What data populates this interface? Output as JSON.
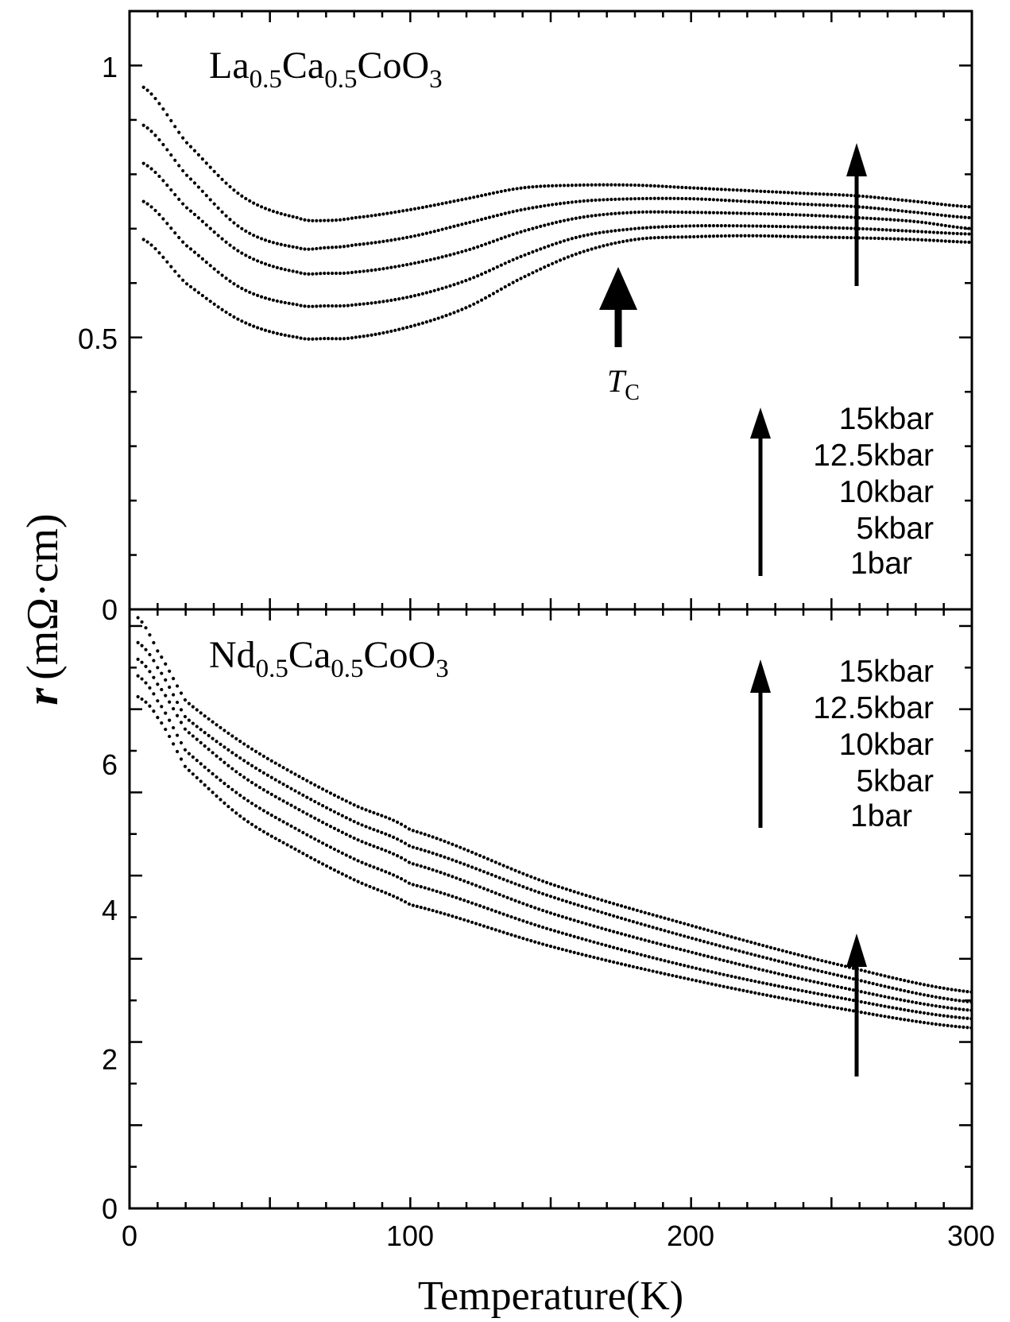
{
  "chart_data": [
    {
      "type": "scatter",
      "panel": "top",
      "compound": {
        "base": [
          "La",
          "Ca",
          "CoO"
        ],
        "subs": [
          "0.5",
          "0.5",
          "3"
        ]
      },
      "xlim": [
        0,
        300
      ],
      "ylim": [
        0,
        1.1
      ],
      "y_ticks": [
        "0",
        "0.5",
        "1"
      ],
      "tc_label": {
        "main": "T",
        "sub": "C"
      },
      "legend": {
        "title": "",
        "entries": [
          "15kbar",
          "12.5kbar",
          "10kbar",
          "5kbar",
          "1bar"
        ]
      },
      "series": [
        {
          "name": "1bar",
          "x": [
            5,
            20,
            40,
            60,
            70,
            80,
            100,
            120,
            140,
            160,
            180,
            200,
            220,
            240,
            260,
            280,
            300
          ],
          "y": [
            0.96,
            0.86,
            0.76,
            0.72,
            0.715,
            0.72,
            0.735,
            0.755,
            0.775,
            0.78,
            0.78,
            0.775,
            0.77,
            0.765,
            0.76,
            0.75,
            0.74
          ]
        },
        {
          "name": "5kbar",
          "x": [
            5,
            20,
            40,
            60,
            70,
            80,
            100,
            120,
            140,
            160,
            180,
            200,
            220,
            240,
            260,
            280,
            300
          ],
          "y": [
            0.89,
            0.8,
            0.7,
            0.665,
            0.665,
            0.67,
            0.685,
            0.71,
            0.735,
            0.75,
            0.755,
            0.755,
            0.75,
            0.745,
            0.74,
            0.73,
            0.72
          ]
        },
        {
          "name": "10kbar",
          "x": [
            5,
            20,
            40,
            60,
            70,
            80,
            100,
            120,
            140,
            160,
            180,
            200,
            220,
            240,
            260,
            280,
            300
          ],
          "y": [
            0.82,
            0.74,
            0.655,
            0.62,
            0.618,
            0.62,
            0.635,
            0.66,
            0.695,
            0.72,
            0.73,
            0.73,
            0.728,
            0.725,
            0.72,
            0.713,
            0.7
          ]
        },
        {
          "name": "12.5kbar",
          "x": [
            5,
            20,
            40,
            60,
            70,
            80,
            100,
            120,
            140,
            160,
            180,
            200,
            220,
            240,
            260,
            280,
            300
          ],
          "y": [
            0.75,
            0.67,
            0.59,
            0.56,
            0.558,
            0.56,
            0.575,
            0.605,
            0.65,
            0.685,
            0.7,
            0.705,
            0.705,
            0.703,
            0.7,
            0.695,
            0.69
          ]
        },
        {
          "name": "15kbar",
          "x": [
            5,
            20,
            40,
            60,
            70,
            80,
            100,
            120,
            140,
            160,
            180,
            200,
            220,
            240,
            260,
            280,
            300
          ],
          "y": [
            0.68,
            0.6,
            0.53,
            0.5,
            0.498,
            0.5,
            0.52,
            0.555,
            0.61,
            0.655,
            0.68,
            0.685,
            0.687,
            0.685,
            0.683,
            0.68,
            0.675
          ]
        }
      ]
    },
    {
      "type": "scatter",
      "panel": "bottom",
      "compound": {
        "base": [
          "Nd",
          "Ca",
          "CoO"
        ],
        "subs": [
          "0.5",
          "0.5",
          "3"
        ]
      },
      "xlim": [
        0,
        300
      ],
      "ylim": [
        0,
        7.2
      ],
      "x_ticks": [
        "0",
        "100",
        "200",
        "300"
      ],
      "y_ticks": [
        "0",
        "2",
        "4",
        "6"
      ],
      "xlabel": "Temperature(K)",
      "ylabel": {
        "main": "r",
        "unit": "(mΩ·cm)"
      },
      "legend": {
        "title": "",
        "entries": [
          "15kbar",
          "12.5kbar",
          "10kbar",
          "5kbar",
          "1bar"
        ]
      },
      "series": [
        {
          "name": "1bar",
          "x": [
            3,
            10,
            20,
            40,
            60,
            80,
            100,
            150,
            200,
            250,
            300
          ],
          "y": [
            7.1,
            6.7,
            6.1,
            5.6,
            5.2,
            4.85,
            4.55,
            3.9,
            3.4,
            2.95,
            2.6
          ]
        },
        {
          "name": "5kbar",
          "x": [
            3,
            10,
            20,
            40,
            60,
            80,
            100,
            150,
            200,
            250,
            300
          ],
          "y": [
            6.8,
            6.5,
            5.9,
            5.4,
            5.0,
            4.65,
            4.35,
            3.75,
            3.25,
            2.82,
            2.48
          ]
        },
        {
          "name": "10kbar",
          "x": [
            3,
            10,
            20,
            40,
            60,
            80,
            100,
            150,
            200,
            250,
            300
          ],
          "y": [
            6.6,
            6.3,
            5.75,
            5.2,
            4.8,
            4.45,
            4.15,
            3.55,
            3.08,
            2.68,
            2.38
          ]
        },
        {
          "name": "12.5kbar",
          "x": [
            3,
            10,
            20,
            40,
            60,
            80,
            100,
            150,
            200,
            250,
            300
          ],
          "y": [
            6.4,
            6.1,
            5.5,
            4.95,
            4.55,
            4.2,
            3.9,
            3.35,
            2.9,
            2.55,
            2.28
          ]
        },
        {
          "name": "15kbar",
          "x": [
            3,
            10,
            20,
            40,
            60,
            80,
            100,
            150,
            200,
            250,
            300
          ],
          "y": [
            6.15,
            5.9,
            5.3,
            4.7,
            4.3,
            3.95,
            3.65,
            3.15,
            2.75,
            2.42,
            2.17
          ]
        }
      ]
    }
  ]
}
